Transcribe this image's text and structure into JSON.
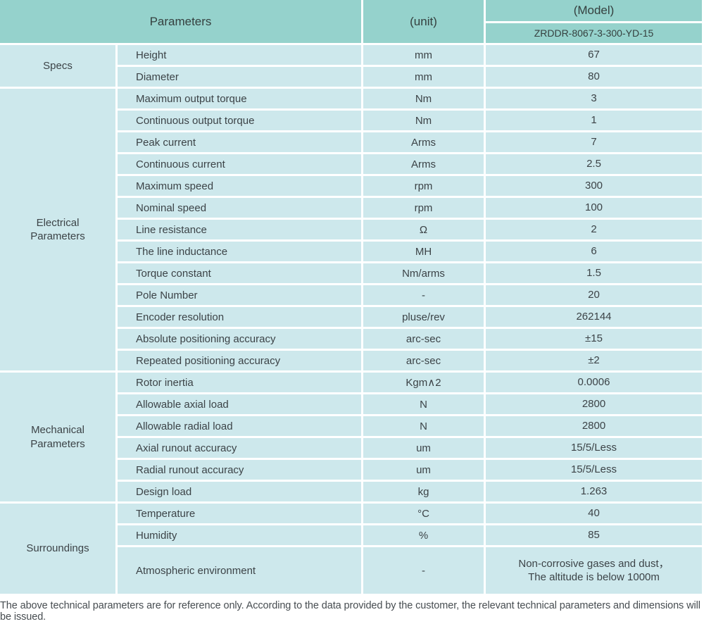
{
  "colors": {
    "header_bg": "#95d2cc",
    "row_bg": "#cde8ec",
    "grid_line": "#ffffff",
    "text": "#3c4347"
  },
  "table": {
    "header": {
      "parameters_label": "Parameters",
      "unit_label": "(unit)",
      "model_label": "(Model)",
      "model_value": "ZRDDR-8067-3-300-YD-15"
    },
    "sections": [
      {
        "label": "Specs",
        "rows": [
          {
            "param": "Height",
            "unit": "mm",
            "value": "67"
          },
          {
            "param": "Diameter",
            "unit": "mm",
            "value": "80"
          }
        ]
      },
      {
        "label": "Electrical Parameters",
        "rows": [
          {
            "param": "Maximum output torque",
            "unit": "Nm",
            "value": "3"
          },
          {
            "param": "Continuous output torque",
            "unit": "Nm",
            "value": "1"
          },
          {
            "param": "Peak current",
            "unit": "Arms",
            "value": "7"
          },
          {
            "param": "Continuous current",
            "unit": "Arms",
            "value": "2.5"
          },
          {
            "param": "Maximum speed",
            "unit": "rpm",
            "value": "300"
          },
          {
            "param": "Nominal speed",
            "unit": "rpm",
            "value": "100"
          },
          {
            "param": "Line resistance",
            "unit": "Ω",
            "value": "2"
          },
          {
            "param": "The line inductance",
            "unit": "MH",
            "value": "6"
          },
          {
            "param": "Torque constant",
            "unit": "Nm/arms",
            "value": "1.5"
          },
          {
            "param": "Pole Number",
            "unit": "-",
            "value": "20"
          },
          {
            "param": "Encoder resolution",
            "unit": "pluse/rev",
            "value": "262144"
          },
          {
            "param": "Absolute positioning accuracy",
            "unit": "arc-sec",
            "value": "±15"
          },
          {
            "param": "Repeated positioning accuracy",
            "unit": "arc-sec",
            "value": "±2"
          }
        ]
      },
      {
        "label": "Mechanical Parameters",
        "rows": [
          {
            "param": "Rotor inertia",
            "unit": "Kgm∧2",
            "value": "0.0006"
          },
          {
            "param": "Allowable axial load",
            "unit": "N",
            "value": "2800"
          },
          {
            "param": "Allowable radial load",
            "unit": "N",
            "value": "2800"
          },
          {
            "param": "Axial runout accuracy",
            "unit": "um",
            "value": "15/5/Less"
          },
          {
            "param": "Radial runout accuracy",
            "unit": "um",
            "value": "15/5/Less"
          },
          {
            "param": "Design load",
            "unit": "kg",
            "value": "1.263"
          }
        ]
      },
      {
        "label": "Surroundings",
        "rows": [
          {
            "param": "Temperature",
            "unit": "°C",
            "value": "40"
          },
          {
            "param": "Humidity",
            "unit": "%",
            "value": "85"
          },
          {
            "param": "Atmospheric environment",
            "unit": "-",
            "value": "Non-corrosive gases and dust，\nThe altitude is below 1000m"
          }
        ]
      }
    ]
  },
  "footer": {
    "note": "The above technical parameters are for reference only. According to the data provided by the customer, the relevant technical parameters and dimensions will be issued."
  }
}
